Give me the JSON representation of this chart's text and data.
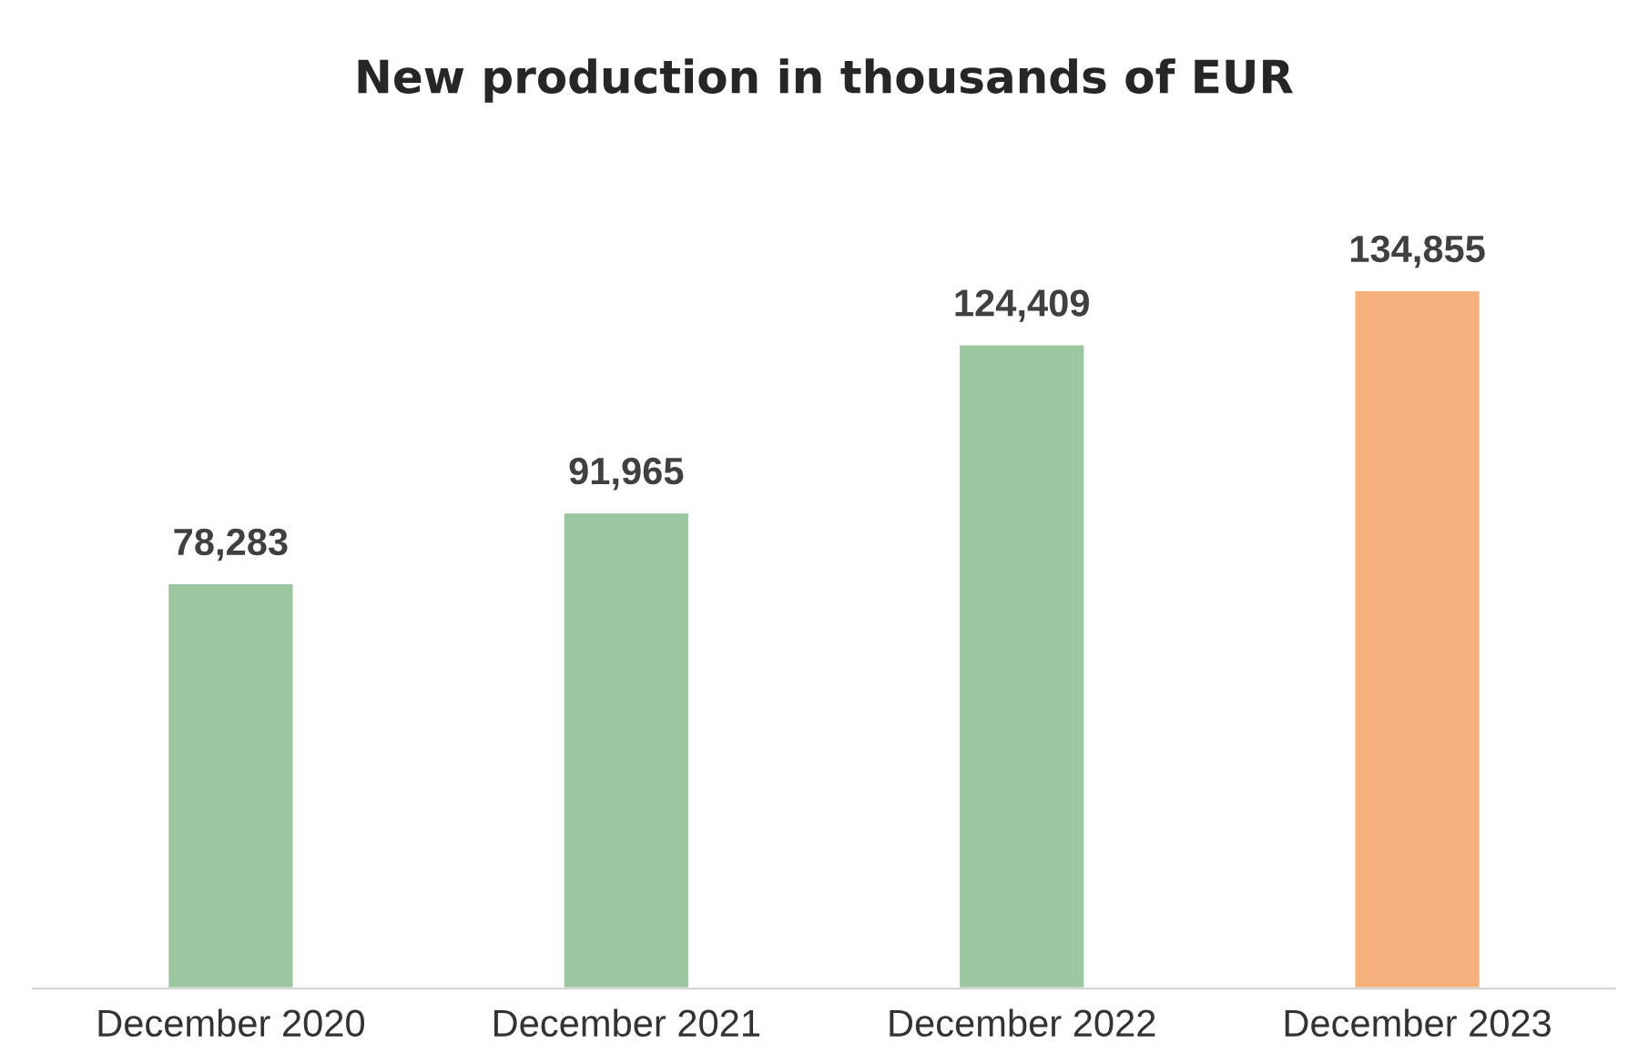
{
  "chart_data": {
    "type": "bar",
    "title": "New production in thousands of EUR",
    "categories": [
      "December 2020",
      "December 2021",
      "December 2022",
      "December 2023"
    ],
    "values": [
      78283,
      91965,
      124409,
      134855
    ],
    "colors": [
      "#9bc69f",
      "#9bc69f",
      "#9bc69f",
      "#f6b07c"
    ],
    "value_labels": [
      "78,283",
      "91,965",
      "124,409",
      "134,855"
    ]
  }
}
